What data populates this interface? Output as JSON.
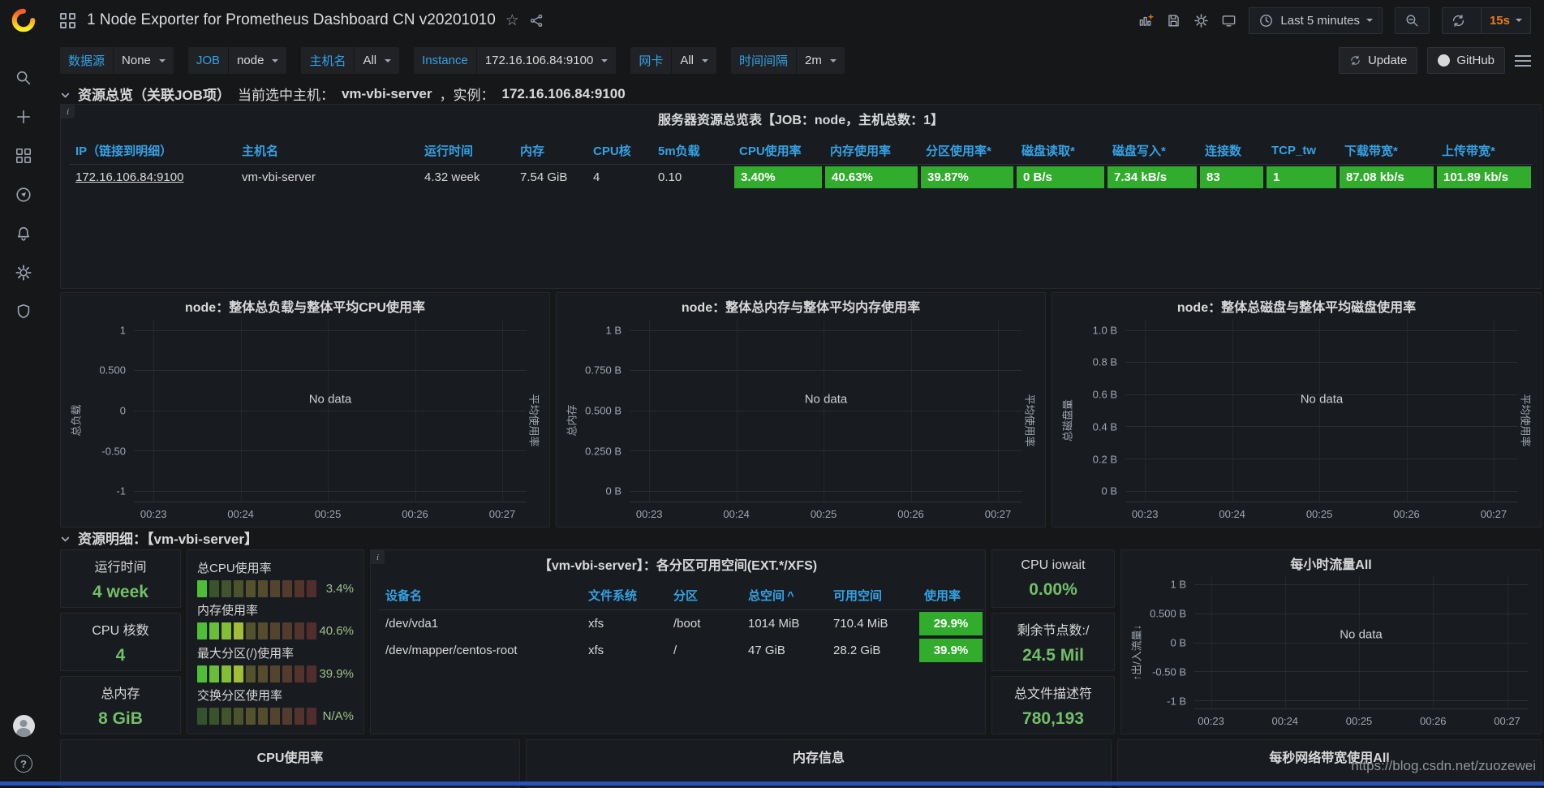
{
  "colors": {
    "accent_blue": "#33a2e5",
    "green_cell": "#32ac2d",
    "green_text": "#73bf69",
    "red_text": "#f53636",
    "orange": "#eb7b18",
    "panel_bg": "#181b1f",
    "page_bg": "#161719",
    "bottom_strip_blue": "#2a52bf"
  },
  "sidebar": {
    "icons": [
      "grafana-logo",
      "search",
      "add",
      "dashboards",
      "explore",
      "alerting",
      "configuration",
      "server-admin",
      "avatar",
      "help"
    ]
  },
  "navbar": {
    "title": "1 Node Exporter for Prometheus Dashboard CN v20201010",
    "icons": [
      "apps-grid",
      "star",
      "share",
      "add-panel",
      "save",
      "settings",
      "tv-mode",
      "clock",
      "zoom-out",
      "refresh"
    ],
    "time_range": "Last 5 minutes",
    "refresh_interval": "15s"
  },
  "variables": [
    {
      "label": "数据源",
      "value": "None"
    },
    {
      "label": "JOB",
      "value": "node"
    },
    {
      "label": "主机名",
      "value": "All"
    },
    {
      "label": "Instance",
      "value": "172.16.106.84:9100"
    },
    {
      "label": "网卡",
      "value": "All"
    },
    {
      "label": "时间间隔",
      "value": "2m"
    }
  ],
  "submenu_buttons": {
    "update": "Update",
    "github": "GitHub"
  },
  "section_rows": {
    "overview": {
      "title": "资源总览（关联JOB项）",
      "subtitle_prefix": "当前选中主机：",
      "host": "vm-vbi-server",
      "subtitle_mid": "，实例：",
      "instance": "172.16.106.84:9100"
    },
    "detail": {
      "title": "资源明细：【vm-vbi-server】"
    }
  },
  "overview_table": {
    "title": "服务器资源总览表【JOB：node，主机总数：1】",
    "columns": [
      "IP（链接到明细）",
      "主机名",
      "运行时间",
      "内存",
      "CPU核",
      "5m负载",
      "CPU使用率",
      "内存使用率",
      "分区使用率*",
      "磁盘读取*",
      "磁盘写入*",
      "连接数",
      "TCP_tw",
      "下载带宽*",
      "上传带宽*"
    ],
    "rows": [
      {
        "ip": "172.16.106.84:9100",
        "host": "vm-vbi-server",
        "uptime": "4.32 week",
        "mem": "7.54 GiB",
        "cores": "4",
        "load5m": "0.10",
        "cpu_pct": "3.40%",
        "mem_pct": "40.63%",
        "part_pct": "39.87%",
        "disk_read": "0 B/s",
        "disk_write": "7.34 kB/s",
        "connections": "83",
        "tcp_tw": "1",
        "download_bw": "87.08 kb/s",
        "upload_bw": "101.89 kb/s"
      }
    ]
  },
  "stats_left": [
    {
      "label": "运行时间",
      "value": "4 week"
    },
    {
      "label": "CPU 核数",
      "value": "4"
    },
    {
      "label": "总内存",
      "value": "8 GiB"
    }
  ],
  "bar_gauges": {
    "items": [
      {
        "label": "总CPU使用率",
        "value": "3.4%",
        "percent": 3.4
      },
      {
        "label": "内存使用率",
        "value": "40.6%",
        "percent": 40.6
      },
      {
        "label": "最大分区(/)使用率",
        "value": "39.9%",
        "percent": 39.9
      },
      {
        "label": "交换分区使用率",
        "value": "N/A%",
        "percent": null
      }
    ]
  },
  "partition_table": {
    "title": "【vm-vbi-server】：各分区可用空间(EXT.*/XFS)",
    "columns": [
      "设备名",
      "文件系统",
      "分区",
      "总空间",
      "可用空间",
      "使用率"
    ],
    "sorted_column": "总空间",
    "sort_indicator": "^",
    "rows": [
      {
        "device": "/dev/vda1",
        "fs": "xfs",
        "mount": "/boot",
        "total": "1014 MiB",
        "avail": "710.4 MiB",
        "avail_color": "red",
        "used_pct": "29.9%"
      },
      {
        "device": "/dev/mapper/centos-root",
        "fs": "xfs",
        "mount": "/",
        "total": "47 GiB",
        "avail": "28.2 GiB",
        "avail_color": "green",
        "used_pct": "39.9%"
      }
    ]
  },
  "stats_right": [
    {
      "label": "CPU iowait",
      "value": "0.00%"
    },
    {
      "label": "剩余节点数:/",
      "value": "24.5 Mil"
    },
    {
      "label": "总文件描述符",
      "value": "780,193"
    }
  ],
  "bottom_panel_titles": [
    "CPU使用率",
    "内存信息",
    "每秒网络带宽使用All"
  ],
  "watermark": "https://blog.csdn.net/zuozewei",
  "chart_data": [
    {
      "type": "line",
      "title": "node：整体总负载与整体平均CPU使用率",
      "series": [],
      "no_data": "No data",
      "grid": true,
      "legend": false,
      "ylabel_left": "总负载",
      "ylabel_right": "平均使用率",
      "ylim": [
        -1,
        1
      ],
      "y_ticks": [
        "1",
        "0.500",
        "0",
        "-0.50",
        "-1"
      ],
      "x_ticks": [
        "00:23",
        "00:24",
        "00:25",
        "00:26",
        "00:27"
      ]
    },
    {
      "type": "line",
      "title": "node：整体总内存与整体平均内存使用率",
      "series": [],
      "no_data": "No data",
      "grid": true,
      "legend": false,
      "ylabel_left": "总内存",
      "ylabel_right": "平均使用率",
      "ylim": [
        0,
        1
      ],
      "y_ticks": [
        "1 B",
        "0.750 B",
        "0.500 B",
        "0.250 B",
        "0 B"
      ],
      "x_ticks": [
        "00:23",
        "00:24",
        "00:25",
        "00:26",
        "00:27"
      ]
    },
    {
      "type": "line",
      "title": "node：整体总磁盘与整体平均磁盘使用率",
      "series": [],
      "no_data": "No data",
      "grid": true,
      "legend": false,
      "ylabel_left": "总磁盘量",
      "ylabel_right": "平均使用率",
      "ylim": [
        0,
        1
      ],
      "y_ticks": [
        "1.0 B",
        "0.8 B",
        "0.6 B",
        "0.4 B",
        "0.2 B",
        "0 B"
      ],
      "x_ticks": [
        "00:23",
        "00:24",
        "00:25",
        "00:26",
        "00:27"
      ]
    },
    {
      "type": "line",
      "title": "每小时流量All",
      "series": [],
      "no_data": "No data",
      "grid": true,
      "legend": false,
      "ylabel_left": "↑出/入流量↓",
      "ylabel_right": null,
      "ylim": [
        -1,
        1
      ],
      "y_ticks": [
        "1 B",
        "0.500 B",
        "0 B",
        "-0.50 B",
        "-1 B"
      ],
      "x_ticks": [
        "00:23",
        "00:24",
        "00:25",
        "00:26",
        "00:27"
      ]
    }
  ]
}
